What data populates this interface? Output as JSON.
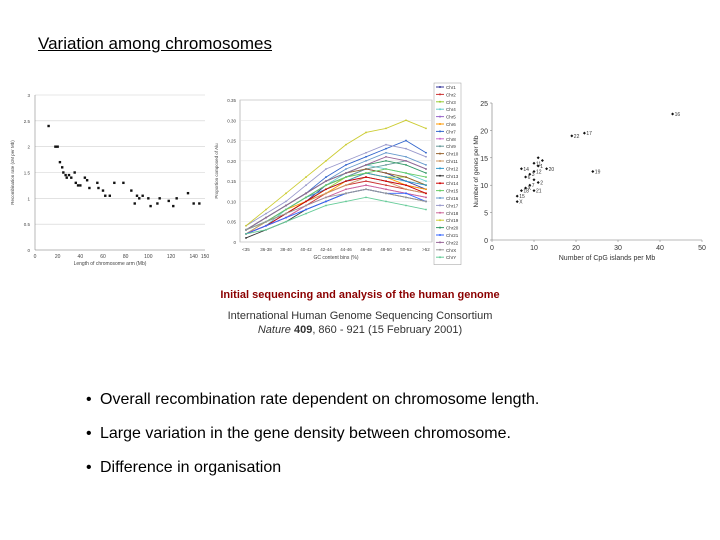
{
  "slide": {
    "title": "Variation among chromosomes",
    "caption_title": "Initial sequencing and analysis of the human genome",
    "caption_authors": "International Human Genome Sequencing Consortium",
    "caption_journal": "Nature",
    "caption_volume": "409",
    "caption_rest": ", 860 - 921 (15 February 2001)",
    "bullets": [
      "Overall recombination rate dependent on chromosome length.",
      "Large variation in the gene density between chromosome.",
      "Difference in organisation"
    ]
  },
  "chart_data": [
    {
      "type": "scatter",
      "xlabel": "Length of chromosome arm (Mb)",
      "ylabel": "Recombination rate (cM per Mb)",
      "xlim": [
        0,
        150
      ],
      "ylim": [
        0,
        3
      ],
      "xticks": [
        "0",
        "20",
        "40",
        "60",
        "80",
        "100",
        "120",
        "140",
        "150"
      ],
      "yticks": [
        "0",
        "0.5",
        "1",
        "1.5",
        "2",
        "2.5",
        "3"
      ],
      "grid": true,
      "points": [
        [
          12,
          2.4
        ],
        [
          18,
          2.0
        ],
        [
          20,
          2.0
        ],
        [
          22,
          1.7
        ],
        [
          24,
          1.6
        ],
        [
          25,
          1.5
        ],
        [
          27,
          1.45
        ],
        [
          28,
          1.4
        ],
        [
          30,
          1.45
        ],
        [
          32,
          1.4
        ],
        [
          35,
          1.5
        ],
        [
          36,
          1.3
        ],
        [
          38,
          1.25
        ],
        [
          40,
          1.25
        ],
        [
          44,
          1.4
        ],
        [
          46,
          1.35
        ],
        [
          48,
          1.2
        ],
        [
          55,
          1.3
        ],
        [
          56,
          1.2
        ],
        [
          60,
          1.15
        ],
        [
          62,
          1.05
        ],
        [
          66,
          1.05
        ],
        [
          70,
          1.3
        ],
        [
          78,
          1.3
        ],
        [
          85,
          1.15
        ],
        [
          88,
          0.9
        ],
        [
          90,
          1.05
        ],
        [
          92,
          1.0
        ],
        [
          95,
          1.05
        ],
        [
          100,
          1.0
        ],
        [
          102,
          0.85
        ],
        [
          108,
          0.9
        ],
        [
          110,
          1.0
        ],
        [
          118,
          0.95
        ],
        [
          122,
          0.85
        ],
        [
          125,
          1.0
        ],
        [
          135,
          1.1
        ],
        [
          140,
          0.9
        ],
        [
          145,
          0.9
        ]
      ]
    },
    {
      "type": "line",
      "xlabel": "GC content bins (%)",
      "ylabel": "Proportion composed of Alu",
      "categories": [
        "<35",
        "36-38",
        "38-40",
        "40-42",
        "42-44",
        "44-46",
        "46-48",
        "48-50",
        "50-52",
        ">52"
      ],
      "ylim": [
        0,
        0.35
      ],
      "yticks": [
        "0",
        "0.05",
        "0.10",
        "0.15",
        "0.20",
        "0.25",
        "0.30",
        "0.35"
      ],
      "grid": true,
      "legend_position": "right",
      "series": [
        {
          "name": "Chr1",
          "values": [
            0.02,
            0.04,
            0.07,
            0.1,
            0.14,
            0.16,
            0.18,
            0.17,
            0.15,
            0.13
          ],
          "color": "#333399"
        },
        {
          "name": "Chr2",
          "values": [
            0.02,
            0.04,
            0.06,
            0.09,
            0.12,
            0.14,
            0.15,
            0.14,
            0.13,
            0.12
          ],
          "color": "#cc3333"
        },
        {
          "name": "Chr3",
          "values": [
            0.03,
            0.05,
            0.07,
            0.1,
            0.13,
            0.16,
            0.17,
            0.16,
            0.16,
            0.14
          ],
          "color": "#99cc33"
        },
        {
          "name": "Chr4",
          "values": [
            0.02,
            0.04,
            0.08,
            0.11,
            0.14,
            0.17,
            0.19,
            0.18,
            0.17,
            0.15
          ],
          "color": "#66cccc"
        },
        {
          "name": "Chr5",
          "values": [
            0.03,
            0.05,
            0.08,
            0.11,
            0.13,
            0.15,
            0.16,
            0.15,
            0.14,
            0.13
          ],
          "color": "#9966cc"
        },
        {
          "name": "Chr6",
          "values": [
            0.02,
            0.05,
            0.08,
            0.1,
            0.12,
            0.15,
            0.17,
            0.16,
            0.14,
            0.13
          ],
          "color": "#ff9900"
        },
        {
          "name": "Chr7",
          "values": [
            0.03,
            0.06,
            0.09,
            0.12,
            0.16,
            0.19,
            0.21,
            0.23,
            0.25,
            0.22
          ],
          "color": "#3366cc"
        },
        {
          "name": "Chr8",
          "values": [
            0.02,
            0.04,
            0.06,
            0.09,
            0.11,
            0.13,
            0.14,
            0.13,
            0.12,
            0.11
          ],
          "color": "#cc66cc"
        },
        {
          "name": "Chr9",
          "values": [
            0.02,
            0.05,
            0.08,
            0.11,
            0.14,
            0.16,
            0.18,
            0.19,
            0.2,
            0.18
          ],
          "color": "#669999"
        },
        {
          "name": "Chr10",
          "values": [
            0.03,
            0.06,
            0.09,
            0.12,
            0.15,
            0.17,
            0.18,
            0.17,
            0.16,
            0.14
          ],
          "color": "#996633"
        },
        {
          "name": "Chr11",
          "values": [
            0.02,
            0.05,
            0.07,
            0.1,
            0.12,
            0.14,
            0.16,
            0.15,
            0.13,
            0.12
          ],
          "color": "#cc9966"
        },
        {
          "name": "Chr12",
          "values": [
            0.03,
            0.05,
            0.08,
            0.11,
            0.13,
            0.15,
            0.17,
            0.16,
            0.15,
            0.14
          ],
          "color": "#3399cc"
        },
        {
          "name": "Chr13",
          "values": [
            0.01,
            0.03,
            0.05,
            0.08,
            0.1,
            0.12,
            0.13,
            0.12,
            0.11,
            0.1
          ],
          "color": "#333333"
        },
        {
          "name": "Chr14",
          "values": [
            0.02,
            0.04,
            0.07,
            0.1,
            0.13,
            0.15,
            0.16,
            0.15,
            0.14,
            0.12
          ],
          "color": "#cc0000"
        },
        {
          "name": "Chr15",
          "values": [
            0.03,
            0.05,
            0.08,
            0.11,
            0.14,
            0.16,
            0.17,
            0.18,
            0.17,
            0.16
          ],
          "color": "#66cc66"
        },
        {
          "name": "Chr16",
          "values": [
            0.03,
            0.06,
            0.09,
            0.12,
            0.15,
            0.18,
            0.2,
            0.22,
            0.21,
            0.19
          ],
          "color": "#6699cc"
        },
        {
          "name": "Chr17",
          "values": [
            0.04,
            0.07,
            0.1,
            0.14,
            0.18,
            0.2,
            0.22,
            0.24,
            0.23,
            0.21
          ],
          "color": "#9999cc"
        },
        {
          "name": "Chr18",
          "values": [
            0.02,
            0.04,
            0.06,
            0.09,
            0.11,
            0.13,
            0.14,
            0.13,
            0.12,
            0.11
          ],
          "color": "#cc6699"
        },
        {
          "name": "Chr19",
          "values": [
            0.04,
            0.08,
            0.12,
            0.16,
            0.2,
            0.24,
            0.27,
            0.28,
            0.3,
            0.28
          ],
          "color": "#cccc33"
        },
        {
          "name": "Chr20",
          "values": [
            0.03,
            0.06,
            0.09,
            0.12,
            0.15,
            0.17,
            0.19,
            0.2,
            0.19,
            0.17
          ],
          "color": "#339966"
        },
        {
          "name": "Chr21",
          "values": [
            0.02,
            0.04,
            0.06,
            0.08,
            0.1,
            0.12,
            0.13,
            0.12,
            0.12,
            0.1
          ],
          "color": "#3366ff"
        },
        {
          "name": "Chr22",
          "values": [
            0.03,
            0.06,
            0.09,
            0.12,
            0.15,
            0.17,
            0.19,
            0.21,
            0.2,
            0.18
          ],
          "color": "#996699"
        },
        {
          "name": "ChrX",
          "values": [
            0.03,
            0.05,
            0.07,
            0.09,
            0.11,
            0.12,
            0.13,
            0.12,
            0.11,
            0.1
          ],
          "color": "#999999"
        },
        {
          "name": "ChrY",
          "values": [
            0.02,
            0.03,
            0.05,
            0.07,
            0.09,
            0.1,
            0.11,
            0.1,
            0.09,
            0.08
          ],
          "color": "#66cc99"
        }
      ]
    },
    {
      "type": "scatter",
      "xlabel": "Number of CpG islands per Mb",
      "ylabel": "Number of genes per Mb",
      "xlim": [
        0,
        50
      ],
      "ylim": [
        0,
        25
      ],
      "xticks": [
        "0",
        "10",
        "20",
        "30",
        "40",
        "50"
      ],
      "yticks": [
        "0",
        "5",
        "10",
        "15",
        "20",
        "25"
      ],
      "grid": false,
      "points": [
        {
          "x": 43,
          "y": 23,
          "label": "16"
        },
        {
          "x": 22,
          "y": 19.5,
          "label": "17"
        },
        {
          "x": 19,
          "y": 19,
          "label": "22"
        },
        {
          "x": 11,
          "y": 15,
          "label": ""
        },
        {
          "x": 12,
          "y": 14.5,
          "label": ""
        },
        {
          "x": 10,
          "y": 14,
          "label": "11"
        },
        {
          "x": 11,
          "y": 13.5,
          "label": "1"
        },
        {
          "x": 13,
          "y": 13,
          "label": "20"
        },
        {
          "x": 7,
          "y": 13,
          "label": "14"
        },
        {
          "x": 10,
          "y": 12.5,
          "label": "12"
        },
        {
          "x": 9,
          "y": 12,
          "label": "3"
        },
        {
          "x": 8,
          "y": 11.5,
          "label": "6"
        },
        {
          "x": 10,
          "y": 11,
          "label": ""
        },
        {
          "x": 11,
          "y": 10.5,
          "label": "2"
        },
        {
          "x": 9,
          "y": 10,
          "label": "7"
        },
        {
          "x": 8,
          "y": 9.5,
          "label": "X"
        },
        {
          "x": 7,
          "y": 9,
          "label": "18"
        },
        {
          "x": 10,
          "y": 9,
          "label": "21"
        },
        {
          "x": 6,
          "y": 8,
          "label": "15"
        },
        {
          "x": 6,
          "y": 7,
          "label": "X"
        },
        {
          "x": 24,
          "y": 12.5,
          "label": "19"
        }
      ]
    }
  ]
}
